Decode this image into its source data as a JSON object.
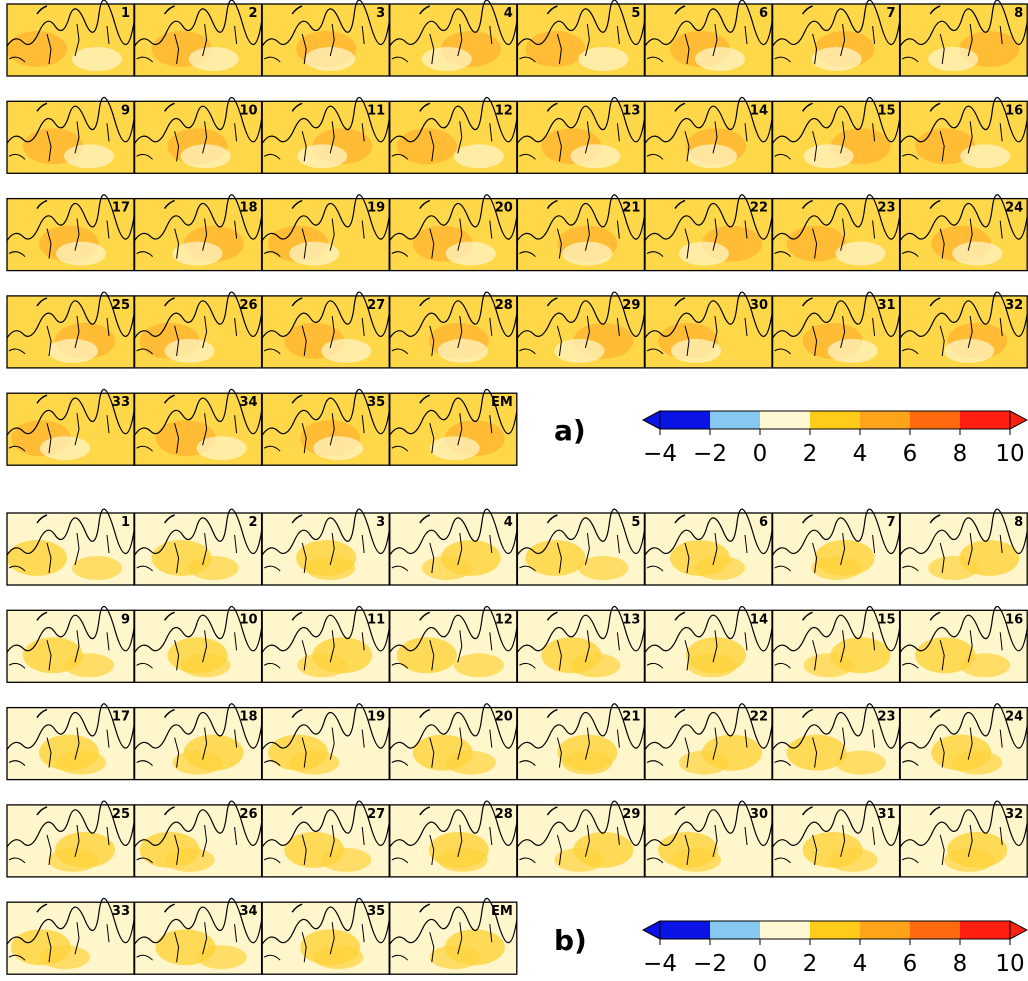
{
  "figures": [
    {
      "label": "a)",
      "panels": [
        "1",
        "2",
        "3",
        "4",
        "5",
        "6",
        "7",
        "8",
        "9",
        "10",
        "11",
        "12",
        "13",
        "14",
        "15",
        "16",
        "17",
        "18",
        "19",
        "20",
        "21",
        "22",
        "23",
        "24",
        "25",
        "26",
        "27",
        "28",
        "29",
        "30",
        "31",
        "32",
        "33",
        "34",
        "35",
        "EM"
      ],
      "colorbar": {
        "ticks": [
          {
            "value": -4,
            "label": "−4"
          },
          {
            "value": -2,
            "label": "−2"
          },
          0,
          2,
          4,
          6,
          8,
          10
        ],
        "colors": [
          "#0a14e6",
          "#87c8f0",
          "#fff8d2",
          "#ffcc1a",
          "#ffa31a",
          "#ff6a10",
          "#ff1e10"
        ],
        "extend_colors": [
          "#0a14e6",
          "#ff1e10"
        ]
      }
    },
    {
      "label": "b)",
      "panels": [
        "1",
        "2",
        "3",
        "4",
        "5",
        "6",
        "7",
        "8",
        "9",
        "10",
        "11",
        "12",
        "13",
        "14",
        "15",
        "16",
        "17",
        "18",
        "19",
        "20",
        "21",
        "22",
        "23",
        "24",
        "25",
        "26",
        "27",
        "28",
        "29",
        "30",
        "31",
        "32",
        "33",
        "34",
        "35",
        "EM"
      ],
      "colorbar": {
        "ticks": [
          {
            "value": -4,
            "label": "−4"
          },
          {
            "value": -2,
            "label": "−2"
          },
          0,
          2,
          4,
          6,
          8,
          10
        ],
        "colors": [
          "#0a14e6",
          "#87c8f0",
          "#fff8d2",
          "#ffcc1a",
          "#ffa31a",
          "#ff6a10",
          "#ff1e10"
        ],
        "extend_colors": [
          "#0a14e6",
          "#ff1e10"
        ]
      }
    }
  ]
}
